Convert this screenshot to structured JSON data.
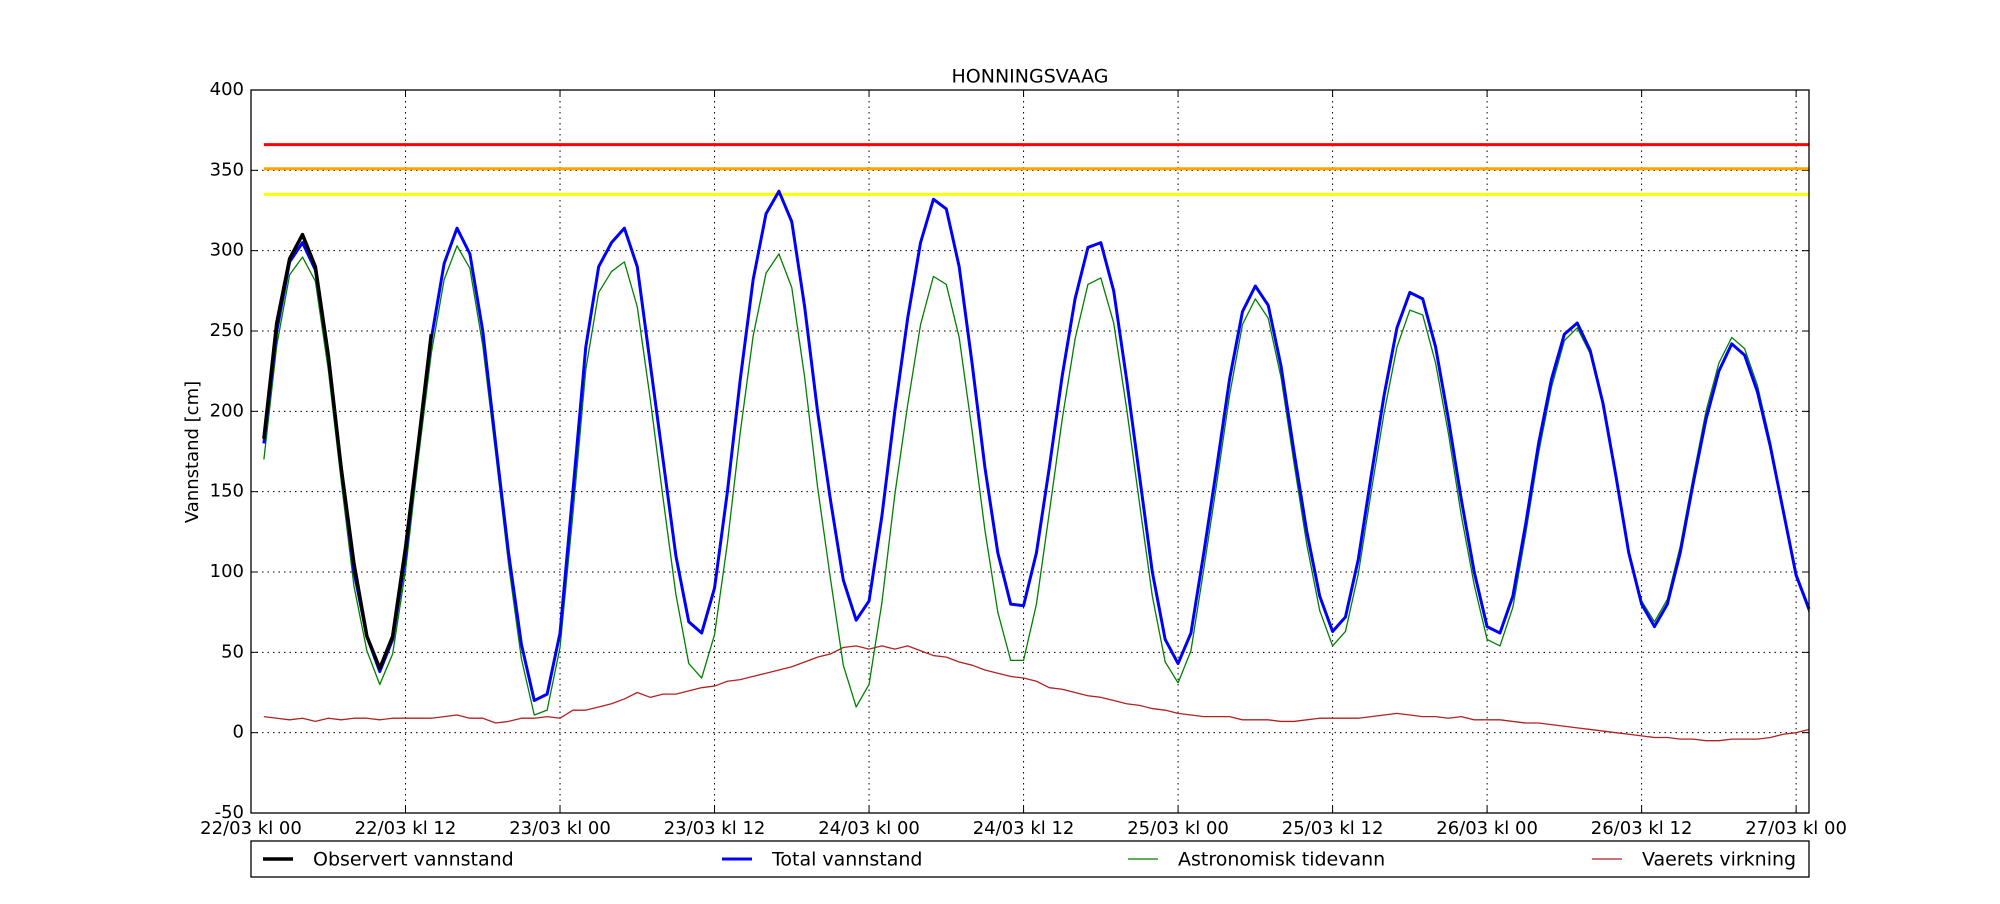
{
  "chart_data": {
    "type": "line",
    "title": "HONNINGSVAAG",
    "y_label": "Vannstand [cm]",
    "x": [
      "22/03 kl 01",
      "22/03 kl 02",
      "22/03 kl 03",
      "22/03 kl 04",
      "22/03 kl 05",
      "22/03 kl 06",
      "22/03 kl 07",
      "22/03 kl 08",
      "22/03 kl 09",
      "22/03 kl 10",
      "22/03 kl 11",
      "22/03 kl 12",
      "22/03 kl 13",
      "22/03 kl 14",
      "22/03 kl 15",
      "22/03 kl 16",
      "22/03 kl 17",
      "22/03 kl 18",
      "22/03 kl 19",
      "22/03 kl 20",
      "22/03 kl 21",
      "22/03 kl 22",
      "22/03 kl 23",
      "23/03 kl 00",
      "23/03 kl 01",
      "23/03 kl 02",
      "23/03 kl 03",
      "23/03 kl 04",
      "23/03 kl 05",
      "23/03 kl 06",
      "23/03 kl 07",
      "23/03 kl 08",
      "23/03 kl 09",
      "23/03 kl 10",
      "23/03 kl 11",
      "23/03 kl 12",
      "23/03 kl 13",
      "23/03 kl 14",
      "23/03 kl 15",
      "23/03 kl 16",
      "23/03 kl 17",
      "23/03 kl 18",
      "23/03 kl 19",
      "23/03 kl 20",
      "23/03 kl 21",
      "23/03 kl 22",
      "23/03 kl 23",
      "24/03 kl 00",
      "24/03 kl 01",
      "24/03 kl 02",
      "24/03 kl 03",
      "24/03 kl 04",
      "24/03 kl 05",
      "24/03 kl 06",
      "24/03 kl 07",
      "24/03 kl 08",
      "24/03 kl 09",
      "24/03 kl 10",
      "24/03 kl 11",
      "24/03 kl 12",
      "24/03 kl 13",
      "24/03 kl 14",
      "24/03 kl 15",
      "24/03 kl 16",
      "24/03 kl 17",
      "24/03 kl 18",
      "24/03 kl 19",
      "24/03 kl 20",
      "24/03 kl 21",
      "24/03 kl 22",
      "24/03 kl 23",
      "25/03 kl 00",
      "25/03 kl 01",
      "25/03 kl 02",
      "25/03 kl 03",
      "25/03 kl 04",
      "25/03 kl 05",
      "25/03 kl 06",
      "25/03 kl 07",
      "25/03 kl 08",
      "25/03 kl 09",
      "25/03 kl 10",
      "25/03 kl 11",
      "25/03 kl 12",
      "25/03 kl 13",
      "25/03 kl 14",
      "25/03 kl 15",
      "25/03 kl 16",
      "25/03 kl 17",
      "25/03 kl 18",
      "25/03 kl 19",
      "25/03 kl 20",
      "25/03 kl 21",
      "25/03 kl 22",
      "25/03 kl 23",
      "26/03 kl 00",
      "26/03 kl 01",
      "26/03 kl 02",
      "26/03 kl 03",
      "26/03 kl 04",
      "26/03 kl 05",
      "26/03 kl 06",
      "26/03 kl 07",
      "26/03 kl 08",
      "26/03 kl 09",
      "26/03 kl 10",
      "26/03 kl 11",
      "26/03 kl 12",
      "26/03 kl 13",
      "26/03 kl 14",
      "26/03 kl 15",
      "26/03 kl 16",
      "26/03 kl 17",
      "26/03 kl 18",
      "26/03 kl 19",
      "26/03 kl 20",
      "26/03 kl 21",
      "26/03 kl 22",
      "26/03 kl 23",
      "27/03 kl 00",
      "27/03 kl 01"
    ],
    "xlim": [
      "22/03 kl 00",
      "27/03 kl 01"
    ],
    "xticks": [
      "22/03 kl 00",
      "22/03 kl 12",
      "23/03 kl 00",
      "23/03 kl 12",
      "24/03 kl 00",
      "24/03 kl 12",
      "25/03 kl 00",
      "25/03 kl 12",
      "26/03 kl 00",
      "26/03 kl 12",
      "27/03 kl 00"
    ],
    "ylim": [
      -50,
      400
    ],
    "yticks": [
      -50,
      0,
      50,
      100,
      150,
      200,
      250,
      300,
      350,
      400
    ],
    "grid": true,
    "legend": "bottom",
    "reference_lines": [
      {
        "value": 366,
        "color": "#ff0000"
      },
      {
        "value": 351,
        "color": "#ffa500"
      },
      {
        "value": 335,
        "color": "#ffff00"
      }
    ],
    "series": [
      {
        "name": "Observert vannstand",
        "color": "#000000",
        "linewidth": 3.5,
        "values": [
          183,
          255,
          295,
          310,
          290,
          235,
          165,
          105,
          60,
          40,
          60,
          115,
          180,
          248,
          null,
          null,
          null,
          null,
          null,
          null,
          null,
          null,
          null,
          null,
          null,
          null,
          null,
          null,
          null,
          null,
          null,
          null,
          null,
          null,
          null,
          null,
          null,
          null,
          null,
          null,
          null,
          null,
          null,
          null,
          null,
          null,
          null,
          null,
          null,
          null,
          null,
          null,
          null,
          null,
          null,
          null,
          null,
          null,
          null,
          null,
          null,
          null,
          null,
          null,
          null,
          null,
          null,
          null,
          null,
          null,
          null,
          null,
          null,
          null,
          null,
          null,
          null,
          null,
          null,
          null,
          null,
          null,
          null,
          null,
          null,
          null,
          null,
          null,
          null,
          null,
          null,
          null,
          null,
          null,
          null,
          null,
          null,
          null,
          null,
          null,
          null,
          null,
          null,
          null,
          null,
          null,
          null,
          null,
          null,
          null,
          null,
          null,
          null,
          null,
          null,
          null,
          null,
          null,
          null,
          null,
          null
        ]
      },
      {
        "name": "Total vannstand",
        "color": "#0000ff",
        "linewidth": 3,
        "values": [
          180,
          250,
          293,
          305,
          288,
          235,
          165,
          100,
          60,
          38,
          58,
          110,
          180,
          245,
          292,
          314,
          298,
          250,
          180,
          112,
          55,
          20,
          24,
          62,
          150,
          240,
          290,
          305,
          314,
          290,
          230,
          170,
          110,
          69,
          62,
          90,
          150,
          220,
          282,
          323,
          337,
          318,
          265,
          200,
          145,
          95,
          70,
          82,
          135,
          200,
          258,
          305,
          332,
          326,
          290,
          230,
          165,
          112,
          80,
          79,
          112,
          165,
          222,
          270,
          302,
          305,
          275,
          220,
          160,
          100,
          58,
          43,
          62,
          112,
          165,
          220,
          262,
          278,
          266,
          228,
          175,
          125,
          85,
          63,
          72,
          108,
          160,
          210,
          252,
          274,
          270,
          240,
          195,
          145,
          100,
          66,
          62,
          85,
          130,
          180,
          220,
          248,
          255,
          238,
          205,
          160,
          112,
          80,
          66,
          80,
          112,
          155,
          195,
          225,
          242,
          235,
          212,
          178,
          138,
          98,
          77
        ]
      },
      {
        "name": "Astronomisk tidevann",
        "color": "#008000",
        "linewidth": 1.3,
        "values": [
          170,
          241,
          285,
          296,
          281,
          226,
          157,
          91,
          51,
          30,
          49,
          101,
          171,
          236,
          282,
          303,
          289,
          241,
          174,
          105,
          46,
          11,
          14,
          53,
          136,
          226,
          274,
          287,
          293,
          265,
          208,
          146,
          86,
          43,
          34,
          61,
          118,
          187,
          247,
          286,
          298,
          277,
          221,
          153,
          96,
          42,
          16,
          30,
          81,
          148,
          204,
          254,
          284,
          279,
          246,
          188,
          126,
          75,
          45,
          45,
          80,
          137,
          195,
          245,
          279,
          283,
          255,
          202,
          143,
          85,
          44,
          31,
          51,
          102,
          155,
          210,
          254,
          270,
          258,
          221,
          168,
          117,
          76,
          54,
          63,
          99,
          150,
          199,
          240,
          263,
          260,
          230,
          186,
          135,
          92,
          58,
          54,
          78,
          124,
          174,
          215,
          244,
          252,
          236,
          204,
          160,
          113,
          82,
          69,
          83,
          116,
          159,
          200,
          230,
          246,
          239,
          216,
          181,
          139,
          98,
          75
        ]
      },
      {
        "name": "Vaerets virkning",
        "color": "#b22222",
        "linewidth": 1.3,
        "values": [
          10,
          9,
          8,
          9,
          7,
          9,
          8,
          9,
          9,
          8,
          9,
          9,
          9,
          9,
          10,
          11,
          9,
          9,
          6,
          7,
          9,
          9,
          10,
          9,
          14,
          14,
          16,
          18,
          21,
          25,
          22,
          24,
          24,
          26,
          28,
          29,
          32,
          33,
          35,
          37,
          39,
          41,
          44,
          47,
          49,
          53,
          54,
          52,
          54,
          52,
          54,
          51,
          48,
          47,
          44,
          42,
          39,
          37,
          35,
          34,
          32,
          28,
          27,
          25,
          23,
          22,
          20,
          18,
          17,
          15,
          14,
          12,
          11,
          10,
          10,
          10,
          8,
          8,
          8,
          7,
          7,
          8,
          9,
          9,
          9,
          9,
          10,
          11,
          12,
          11,
          10,
          10,
          9,
          10,
          8,
          8,
          8,
          7,
          6,
          6,
          5,
          4,
          3,
          2,
          1,
          0,
          -1,
          -2,
          -3,
          -3,
          -4,
          -4,
          -5,
          -5,
          -4,
          -4,
          -4,
          -3,
          -1,
          0,
          2
        ]
      }
    ]
  }
}
